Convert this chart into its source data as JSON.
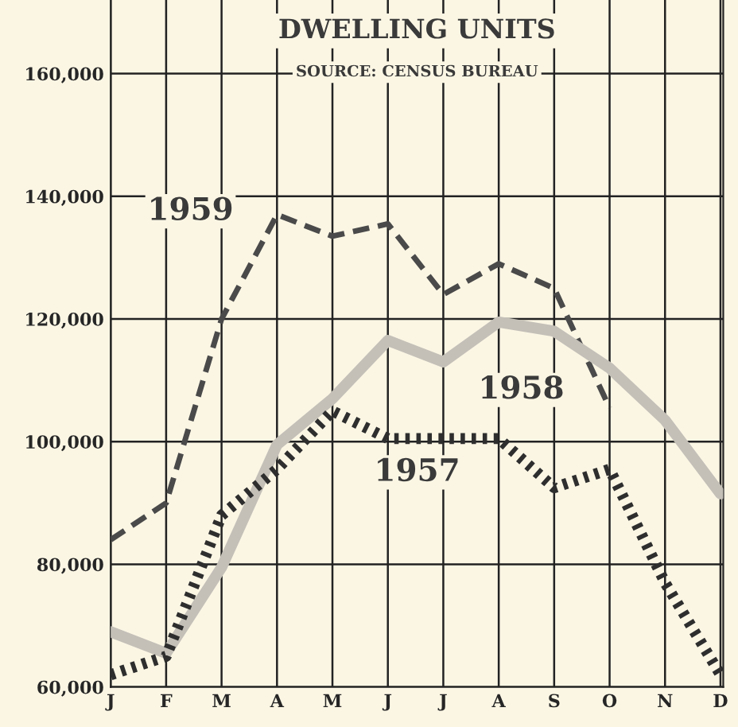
{
  "chart_data": {
    "type": "line",
    "title": "DWELLING UNITS",
    "subtitle": "SOURCE: CENSUS BUREAU",
    "categories": [
      "J",
      "F",
      "M",
      "A",
      "M",
      "J",
      "J",
      "A",
      "S",
      "O",
      "N",
      "D"
    ],
    "series": [
      {
        "name": "1959",
        "color": "#4a4a4a",
        "line_style": "dashed",
        "values": [
          84000,
          90000,
          120000,
          137000,
          133500,
          135500,
          124000,
          129000,
          125000,
          105500,
          null,
          null
        ]
      },
      {
        "name": "1958",
        "color": "#c4c0b8",
        "line_style": "solid",
        "values": [
          69000,
          65500,
          79500,
          99500,
          107000,
          116500,
          113000,
          119500,
          118000,
          112000,
          103500,
          91500
        ]
      },
      {
        "name": "1957",
        "color": "#2e2e2e",
        "line_style": "dotted",
        "values": [
          62000,
          65000,
          88000,
          95500,
          105000,
          100500,
          100500,
          100500,
          92500,
          95500,
          77000,
          62000
        ]
      }
    ],
    "ylim": [
      60000,
      172000
    ],
    "yticks": [
      {
        "value": 60000,
        "label": "60,000"
      },
      {
        "value": 80000,
        "label": "80,000"
      },
      {
        "value": 100000,
        "label": "100,000"
      },
      {
        "value": 120000,
        "label": "120,000"
      },
      {
        "value": 140000,
        "label": "140,000"
      },
      {
        "value": 160000,
        "label": "160,000"
      }
    ],
    "grid": true,
    "legend": false,
    "marker": "none"
  }
}
